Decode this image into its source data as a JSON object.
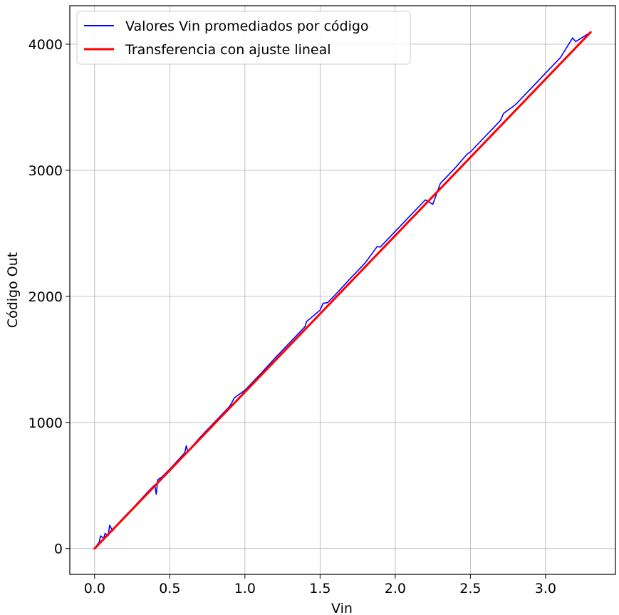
{
  "chart_data": {
    "type": "line",
    "title": "",
    "xlabel": "Vin",
    "ylabel": "Código Out",
    "xlim": [
      -0.165,
      3.465
    ],
    "ylim": [
      -205,
      4305
    ],
    "xticks": [
      0.0,
      0.5,
      1.0,
      1.5,
      2.0,
      2.5,
      3.0
    ],
    "xtick_labels": [
      "0.0",
      "0.5",
      "1.0",
      "1.5",
      "2.0",
      "2.5",
      "3.0"
    ],
    "yticks": [
      0,
      1000,
      2000,
      3000,
      4000
    ],
    "ytick_labels": [
      "0",
      "1000",
      "2000",
      "3000",
      "4000"
    ],
    "grid": true,
    "legend_position": "upper-left",
    "series": [
      {
        "name": "Valores Vin promediados por código",
        "color": "#0000ff",
        "style": "noisy-staircase",
        "points": [
          [
            0.0,
            0
          ],
          [
            0.03,
            50
          ],
          [
            0.04,
            100
          ],
          [
            0.06,
            80
          ],
          [
            0.07,
            120
          ],
          [
            0.09,
            100
          ],
          [
            0.1,
            185
          ],
          [
            0.12,
            140
          ],
          [
            0.15,
            190
          ],
          [
            0.2,
            255
          ],
          [
            0.25,
            315
          ],
          [
            0.3,
            380
          ],
          [
            0.35,
            445
          ],
          [
            0.4,
            505
          ],
          [
            0.41,
            430
          ],
          [
            0.42,
            545
          ],
          [
            0.45,
            570
          ],
          [
            0.5,
            630
          ],
          [
            0.55,
            695
          ],
          [
            0.6,
            760
          ],
          [
            0.61,
            815
          ],
          [
            0.62,
            770
          ],
          [
            0.7,
            880
          ],
          [
            0.8,
            1005
          ],
          [
            0.9,
            1130
          ],
          [
            0.93,
            1195
          ],
          [
            1.0,
            1255
          ],
          [
            1.1,
            1380
          ],
          [
            1.2,
            1510
          ],
          [
            1.3,
            1635
          ],
          [
            1.4,
            1760
          ],
          [
            1.41,
            1800
          ],
          [
            1.5,
            1890
          ],
          [
            1.52,
            1945
          ],
          [
            1.55,
            1950
          ],
          [
            1.6,
            2010
          ],
          [
            1.7,
            2140
          ],
          [
            1.8,
            2265
          ],
          [
            1.88,
            2395
          ],
          [
            1.9,
            2390
          ],
          [
            2.0,
            2515
          ],
          [
            2.1,
            2640
          ],
          [
            2.2,
            2765
          ],
          [
            2.25,
            2730
          ],
          [
            2.3,
            2895
          ],
          [
            2.4,
            3020
          ],
          [
            2.48,
            3130
          ],
          [
            2.5,
            3145
          ],
          [
            2.6,
            3270
          ],
          [
            2.7,
            3395
          ],
          [
            2.72,
            3450
          ],
          [
            2.8,
            3520
          ],
          [
            2.9,
            3645
          ],
          [
            3.0,
            3770
          ],
          [
            3.1,
            3895
          ],
          [
            3.18,
            4050
          ],
          [
            3.2,
            4020
          ],
          [
            3.3,
            4095
          ]
        ]
      },
      {
        "name": "Transferencia con ajuste lineal",
        "color": "#ff0000",
        "style": "straight-line",
        "points": [
          [
            0.0,
            0
          ],
          [
            3.3,
            4095
          ]
        ]
      }
    ]
  }
}
